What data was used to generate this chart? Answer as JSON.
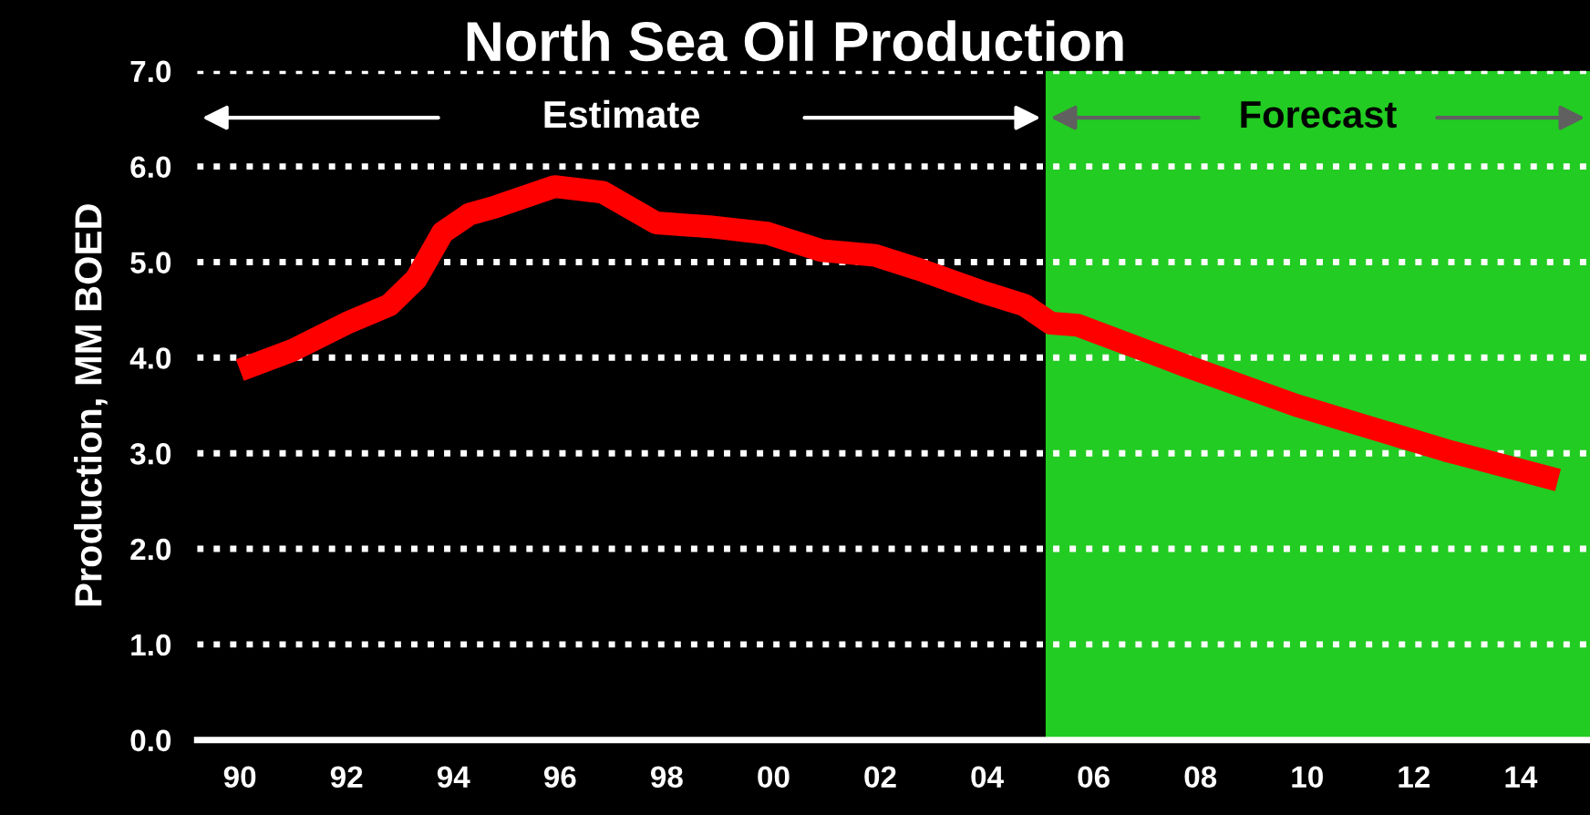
{
  "chart_data": {
    "type": "line",
    "title": "North Sea Oil Production",
    "ylabel": "Production, MM BOED",
    "x": [
      1990,
      1991,
      1992,
      1992.8,
      1993.3,
      1993.8,
      1994.3,
      1994.8,
      1995.9,
      1996.8,
      1997.8,
      1998.8,
      1999.9,
      2000.9,
      2001.9,
      2002.8,
      2003.9,
      2004.7,
      2005.2,
      2005.7,
      2007.7,
      2009.8,
      2012.6,
      2014.7
    ],
    "series": [
      {
        "color": "#ff0000",
        "values": [
          3.87,
          4.08,
          4.36,
          4.55,
          4.82,
          5.31,
          5.5,
          5.58,
          5.79,
          5.73,
          5.41,
          5.37,
          5.3,
          5.12,
          5.07,
          4.91,
          4.69,
          4.55,
          4.36,
          4.34,
          3.92,
          3.5,
          3.03,
          2.72
        ]
      }
    ],
    "xlim": [
      1989.2,
      2015.3
    ],
    "ylim": [
      0,
      7
    ],
    "xticks": [
      {
        "value": 1990,
        "label": "90"
      },
      {
        "value": 1992,
        "label": "92"
      },
      {
        "value": 1994,
        "label": "94"
      },
      {
        "value": 1996,
        "label": "96"
      },
      {
        "value": 1998,
        "label": "98"
      },
      {
        "value": 2000,
        "label": "00"
      },
      {
        "value": 2002,
        "label": "02"
      },
      {
        "value": 2004,
        "label": "04"
      },
      {
        "value": 2006,
        "label": "06"
      },
      {
        "value": 2008,
        "label": "08"
      },
      {
        "value": 2010,
        "label": "10"
      },
      {
        "value": 2012,
        "label": "12"
      },
      {
        "value": 2014,
        "label": "14"
      }
    ],
    "yticks": [
      {
        "value": 0,
        "label": "0.0"
      },
      {
        "value": 1,
        "label": "1.0"
      },
      {
        "value": 2,
        "label": "2.0"
      },
      {
        "value": 3,
        "label": "3.0"
      },
      {
        "value": 4,
        "label": "4.0"
      },
      {
        "value": 5,
        "label": "5.0"
      },
      {
        "value": 6,
        "label": "6.0"
      },
      {
        "value": 7,
        "label": "7.0"
      }
    ],
    "annotations": [
      "Estimate"
    ],
    "bands": [
      {
        "axis": "x",
        "from": 2005.1,
        "to": 2015.3,
        "label": "Forecast",
        "color": "#22cc22"
      }
    ],
    "grid": "y",
    "line_style": "solid",
    "marker": "none",
    "legend": false
  }
}
